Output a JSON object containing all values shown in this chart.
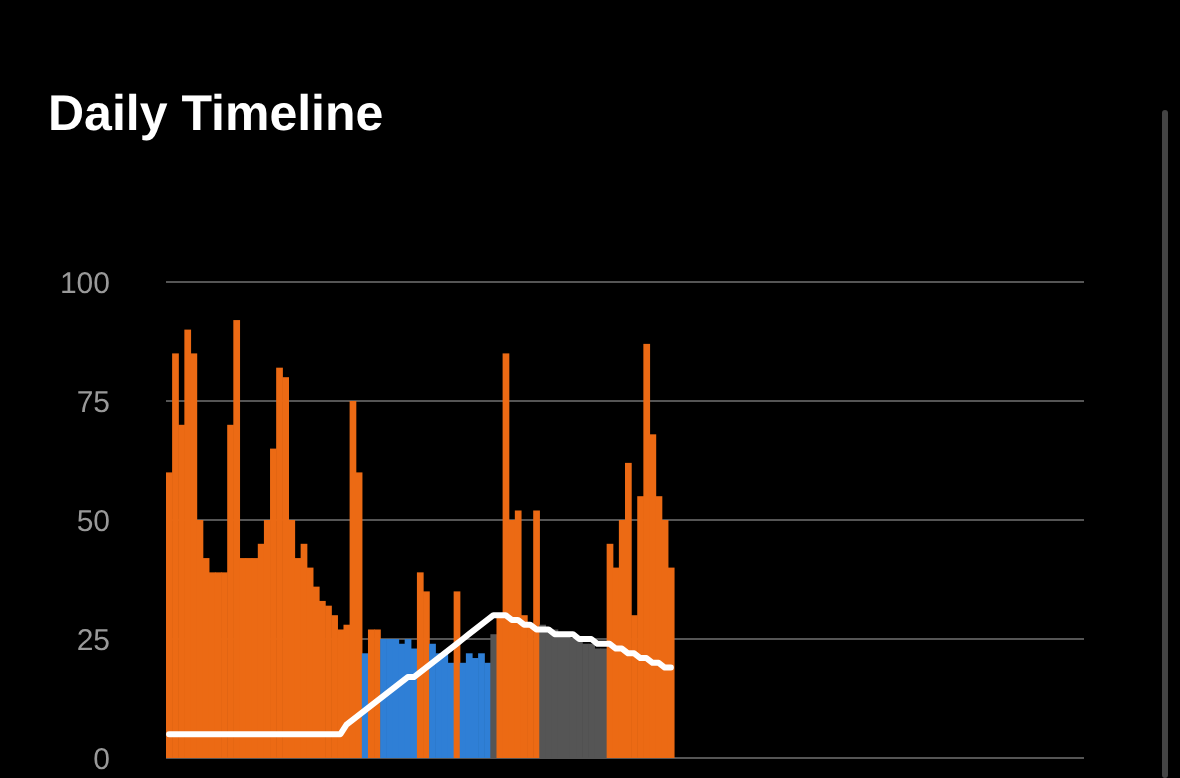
{
  "chart_data": {
    "type": "bar",
    "title": "Daily Timeline",
    "ylim": [
      0,
      100
    ],
    "yticks": [
      0,
      25,
      50,
      75,
      100
    ],
    "grid": "y",
    "tick_labels": "y",
    "categories": [
      null,
      null,
      null,
      null,
      null,
      null,
      null,
      null,
      null,
      null,
      null,
      null,
      null,
      null,
      null,
      null,
      null,
      null,
      null,
      null,
      null,
      null,
      null,
      null,
      null,
      null,
      null,
      null,
      null,
      null,
      null,
      null,
      null,
      null,
      null,
      null,
      null,
      null,
      null,
      null,
      null,
      null,
      null,
      null,
      null,
      null,
      null,
      null,
      null,
      null,
      null,
      null,
      null,
      null,
      null,
      null,
      null,
      null,
      null,
      null,
      null,
      null,
      null,
      null,
      null,
      null,
      null,
      null,
      null,
      null,
      null,
      null,
      null,
      null,
      null,
      null,
      null,
      null,
      null,
      null,
      null,
      null,
      null,
      null,
      null,
      null,
      null,
      null,
      null,
      null,
      null,
      null,
      null,
      null,
      null,
      null,
      null,
      null,
      null,
      null,
      null,
      null,
      null,
      null,
      null,
      null,
      null,
      null,
      null,
      null,
      null,
      null,
      null,
      null,
      null,
      null,
      null,
      null,
      null,
      null,
      null,
      null,
      null,
      null,
      null,
      null,
      null,
      null,
      null,
      null,
      null,
      null,
      null,
      null,
      null,
      null,
      null,
      null,
      null,
      null,
      null,
      null,
      null,
      null,
      null,
      null,
      null,
      null,
      null,
      null
    ],
    "series": [
      {
        "values": [
          60,
          85,
          70,
          90,
          85,
          50,
          42,
          39,
          39,
          39,
          70,
          92,
          42,
          42,
          42,
          45,
          50,
          65,
          82,
          80,
          50,
          42,
          45,
          40,
          36,
          33,
          32,
          30,
          27,
          28,
          75,
          60,
          22,
          27,
          27,
          25,
          25,
          25,
          24,
          25,
          23,
          39,
          35,
          24,
          22,
          22,
          20,
          35,
          20,
          22,
          21,
          22,
          20,
          26,
          30,
          85,
          50,
          52,
          30,
          28,
          52,
          28,
          27,
          27,
          26,
          26,
          25,
          25,
          24,
          24,
          23,
          23,
          45,
          40,
          50,
          62,
          30,
          55,
          87,
          68,
          55,
          50,
          40,
          null,
          null,
          null,
          null,
          null,
          null,
          null,
          null,
          null,
          null,
          null,
          null,
          null,
          null,
          null,
          null,
          null,
          null,
          null,
          null,
          null,
          null,
          null,
          null,
          null,
          null,
          null,
          null,
          null,
          null,
          null,
          null,
          null,
          null,
          null,
          null,
          null,
          null,
          null,
          null,
          null,
          null,
          null,
          null,
          null,
          null,
          null,
          null,
          null,
          null,
          null,
          null,
          null,
          null,
          null,
          null,
          null,
          null,
          null,
          null,
          null,
          null,
          null,
          null,
          null,
          null,
          null
        ],
        "colors": [
          "#ec6a14",
          "#ec6a14",
          "#ec6a14",
          "#ec6a14",
          "#ec6a14",
          "#ec6a14",
          "#ec6a14",
          "#ec6a14",
          "#ec6a14",
          "#ec6a14",
          "#ec6a14",
          "#ec6a14",
          "#ec6a14",
          "#ec6a14",
          "#ec6a14",
          "#ec6a14",
          "#ec6a14",
          "#ec6a14",
          "#ec6a14",
          "#ec6a14",
          "#ec6a14",
          "#ec6a14",
          "#ec6a14",
          "#ec6a14",
          "#ec6a14",
          "#ec6a14",
          "#ec6a14",
          "#ec6a14",
          "#ec6a14",
          "#ec6a14",
          "#ec6a14",
          "#ec6a14",
          "#2f7fd6",
          "#ec6a14",
          "#ec6a14",
          "#2f7fd6",
          "#2f7fd6",
          "#2f7fd6",
          "#2f7fd6",
          "#2f7fd6",
          "#2f7fd6",
          "#ec6a14",
          "#ec6a14",
          "#2f7fd6",
          "#2f7fd6",
          "#2f7fd6",
          "#2f7fd6",
          "#ec6a14",
          "#2f7fd6",
          "#2f7fd6",
          "#2f7fd6",
          "#2f7fd6",
          "#2f7fd6",
          "#555555",
          "#ec6a14",
          "#ec6a14",
          "#ec6a14",
          "#ec6a14",
          "#ec6a14",
          "#ec6a14",
          "#ec6a14",
          "#555555",
          "#555555",
          "#555555",
          "#555555",
          "#555555",
          "#555555",
          "#555555",
          "#555555",
          "#555555",
          "#555555",
          "#555555",
          "#ec6a14",
          "#ec6a14",
          "#ec6a14",
          "#ec6a14",
          "#ec6a14",
          "#ec6a14",
          "#ec6a14",
          "#ec6a14",
          "#ec6a14",
          "#ec6a14",
          "#ec6a14",
          null,
          null,
          null,
          null,
          null,
          null,
          null,
          null,
          null,
          null,
          null,
          null,
          null,
          null,
          null,
          null,
          null,
          null,
          null,
          null,
          null,
          null,
          null,
          null,
          null,
          null,
          null,
          null,
          null,
          null,
          null,
          null,
          null,
          null,
          null,
          null,
          null,
          null,
          null,
          null,
          null,
          null,
          null,
          null,
          null,
          null,
          null,
          null,
          null,
          null,
          null,
          null,
          null,
          null,
          null,
          null,
          null,
          null,
          null,
          null,
          null,
          null,
          null,
          null,
          null,
          null,
          null
        ]
      },
      {
        "type": "line",
        "color": "#ffffff",
        "values": [
          5,
          5,
          5,
          5,
          5,
          5,
          5,
          5,
          5,
          5,
          5,
          5,
          5,
          5,
          5,
          5,
          5,
          5,
          5,
          5,
          5,
          5,
          5,
          5,
          5,
          5,
          5,
          5,
          5,
          7,
          8,
          9,
          10,
          11,
          12,
          13,
          14,
          15,
          16,
          17,
          17,
          18,
          19,
          20,
          21,
          22,
          23,
          24,
          25,
          26,
          27,
          28,
          29,
          30,
          30,
          30,
          29,
          29,
          28,
          28,
          27,
          27,
          27,
          26,
          26,
          26,
          26,
          25,
          25,
          25,
          24,
          24,
          24,
          23,
          23,
          22,
          22,
          21,
          21,
          20,
          20,
          19,
          19,
          null,
          null,
          null,
          null,
          null,
          null,
          null,
          null,
          null,
          null,
          null,
          null,
          null,
          null,
          null,
          null,
          null,
          null,
          null,
          null,
          null,
          null,
          null,
          null,
          null,
          null,
          null,
          null,
          null,
          null,
          null,
          null,
          null,
          null,
          null,
          null,
          null,
          null,
          null,
          null,
          null,
          null,
          null,
          null,
          null,
          null,
          null,
          null,
          null,
          null,
          null,
          null,
          null,
          null,
          null,
          null,
          null,
          null,
          null,
          null,
          null,
          null,
          null,
          null,
          null,
          null,
          null
        ]
      }
    ]
  }
}
